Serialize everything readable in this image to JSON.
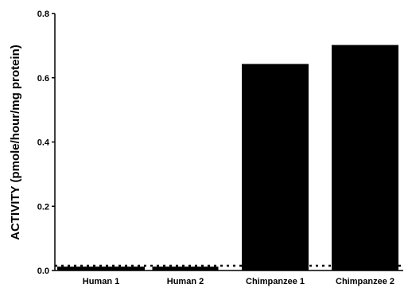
{
  "chart_data": {
    "type": "bar",
    "title": "",
    "xlabel": "",
    "ylabel": "ACTIVITY (pmole/hour/mg protein)",
    "categories": [
      "Human 1",
      "Human 2",
      "Chimpanzee 1",
      "Chimpanzee 2"
    ],
    "values": [
      0.012,
      0.012,
      0.643,
      0.702
    ],
    "ylim": [
      0,
      0.8
    ],
    "yticks": [
      0.0,
      0.2,
      0.4,
      0.6,
      0.8
    ],
    "ytick_labels": [
      "0.0",
      "0.2",
      "0.4",
      "0.6",
      "0.8"
    ],
    "reference_line": {
      "value": 0.015,
      "style": "dotted"
    },
    "bar_color": "#000000",
    "grid": false,
    "legend": "none"
  }
}
